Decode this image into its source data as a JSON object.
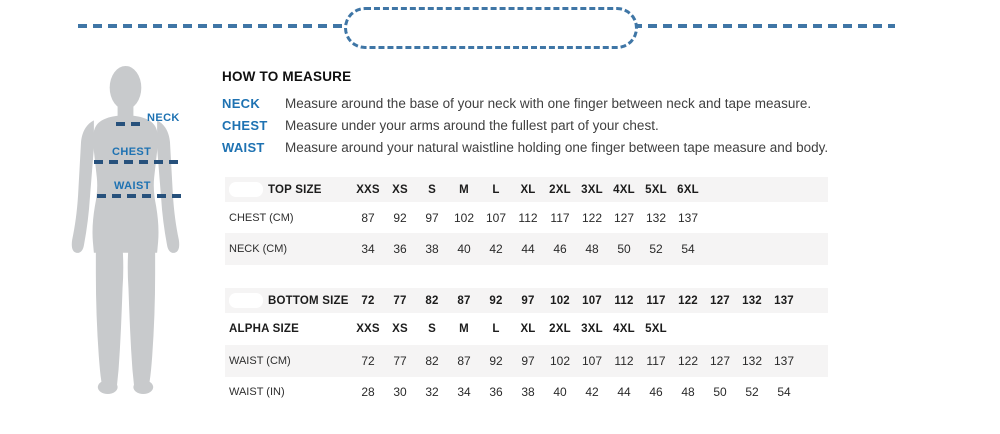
{
  "colors": {
    "accent_blue": "#1e72b2",
    "dash_navy": "#27517c",
    "tape_blue": "#3f76a6",
    "row_shade": "#f5f4f4",
    "silhouette_gray": "#c8cacc"
  },
  "figure": {
    "neck_label": "NECK",
    "chest_label": "CHEST",
    "waist_label": "WAIST"
  },
  "how_to_measure": {
    "title": "HOW TO MEASURE",
    "items": [
      {
        "term": "NECK",
        "description": "Measure around the base of your neck with one finger between neck and tape measure."
      },
      {
        "term": "CHEST",
        "description": "Measure under your arms around the fullest part of your chest."
      },
      {
        "term": "WAIST",
        "description": "Measure around your natural waistline holding one finger between tape measure and body."
      }
    ]
  },
  "tables": [
    {
      "name": "top-size-table",
      "rows": [
        {
          "label": "TOP SIZE",
          "values": [
            "XXS",
            "XS",
            "S",
            "M",
            "L",
            "XL",
            "2XL",
            "3XL",
            "4XL",
            "5XL",
            "6XL"
          ]
        },
        {
          "label": "CHEST (CM)",
          "values": [
            "87",
            "92",
            "97",
            "102",
            "107",
            "112",
            "117",
            "122",
            "127",
            "132",
            "137"
          ]
        },
        {
          "label": "NECK (CM)",
          "values": [
            "34",
            "36",
            "38",
            "40",
            "42",
            "44",
            "46",
            "48",
            "50",
            "52",
            "54"
          ]
        }
      ]
    },
    {
      "name": "bottom-size-table",
      "rows": [
        {
          "label": "BOTTOM SIZE",
          "values": [
            "72",
            "77",
            "82",
            "87",
            "92",
            "97",
            "102",
            "107",
            "112",
            "117",
            "122",
            "127",
            "132",
            "137"
          ]
        },
        {
          "label": "ALPHA SIZE",
          "values": [
            "XXS",
            "XS",
            "S",
            "M",
            "L",
            "XL",
            "2XL",
            "3XL",
            "4XL",
            "5XL"
          ],
          "emphasis": true
        },
        {
          "label": "WAIST (CM)",
          "values": [
            "72",
            "77",
            "82",
            "87",
            "92",
            "97",
            "102",
            "107",
            "112",
            "117",
            "122",
            "127",
            "132",
            "137"
          ]
        },
        {
          "label": "WAIST (IN)",
          "values": [
            "28",
            "30",
            "32",
            "34",
            "36",
            "38",
            "40",
            "42",
            "44",
            "46",
            "48",
            "50",
            "52",
            "54"
          ]
        }
      ]
    }
  ]
}
